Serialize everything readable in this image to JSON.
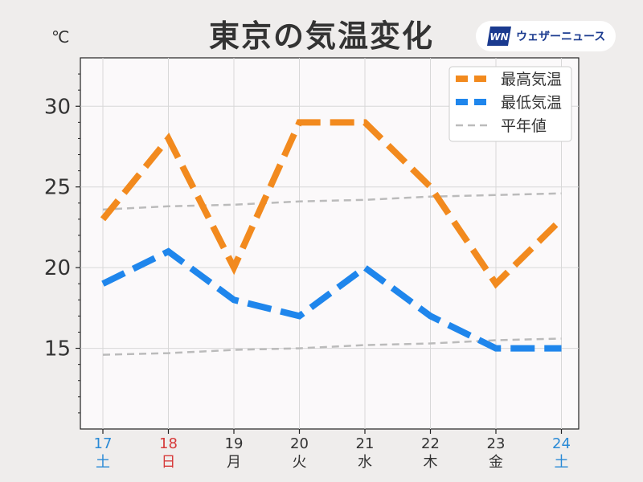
{
  "header": {
    "title": "東京の気温変化",
    "unit": "℃",
    "brand": "ウェザーニュース",
    "brand_logo_icon": "weathernews-logo-icon"
  },
  "chart_data": {
    "type": "line",
    "title": "東京の気温変化",
    "ylabel": "℃",
    "ylim": [
      10,
      33
    ],
    "yticks": [
      15,
      20,
      25,
      30
    ],
    "grid": true,
    "legend_position": "top-right",
    "x": [
      {
        "day": "17",
        "weekday": "土",
        "color": "#2a8ad6"
      },
      {
        "day": "18",
        "weekday": "日",
        "color": "#d63a3a"
      },
      {
        "day": "19",
        "weekday": "月",
        "color": "#333333"
      },
      {
        "day": "20",
        "weekday": "火",
        "color": "#333333"
      },
      {
        "day": "21",
        "weekday": "水",
        "color": "#333333"
      },
      {
        "day": "22",
        "weekday": "木",
        "color": "#333333"
      },
      {
        "day": "23",
        "weekday": "金",
        "color": "#333333"
      },
      {
        "day": "24",
        "weekday": "土",
        "color": "#2a8ad6"
      }
    ],
    "series": [
      {
        "name": "最高気温",
        "color": "#f28a1e",
        "style": "dashed-thick",
        "values": [
          23,
          28,
          20,
          29,
          29,
          25,
          19,
          23
        ]
      },
      {
        "name": "最低気温",
        "color": "#1f86ec",
        "style": "dashed-thick",
        "values": [
          19,
          21,
          18,
          17,
          20,
          17,
          15,
          15
        ]
      },
      {
        "name": "平年値",
        "color": "#bbbbbb",
        "style": "dashed-thin",
        "values": [
          23.6,
          23.8,
          23.9,
          24.1,
          24.2,
          24.4,
          24.5,
          24.6
        ]
      },
      {
        "name": "",
        "color": "#bbbbbb",
        "style": "dashed-thin",
        "legend": false,
        "values": [
          14.6,
          14.7,
          14.9,
          15.0,
          15.2,
          15.3,
          15.5,
          15.6
        ]
      }
    ]
  }
}
